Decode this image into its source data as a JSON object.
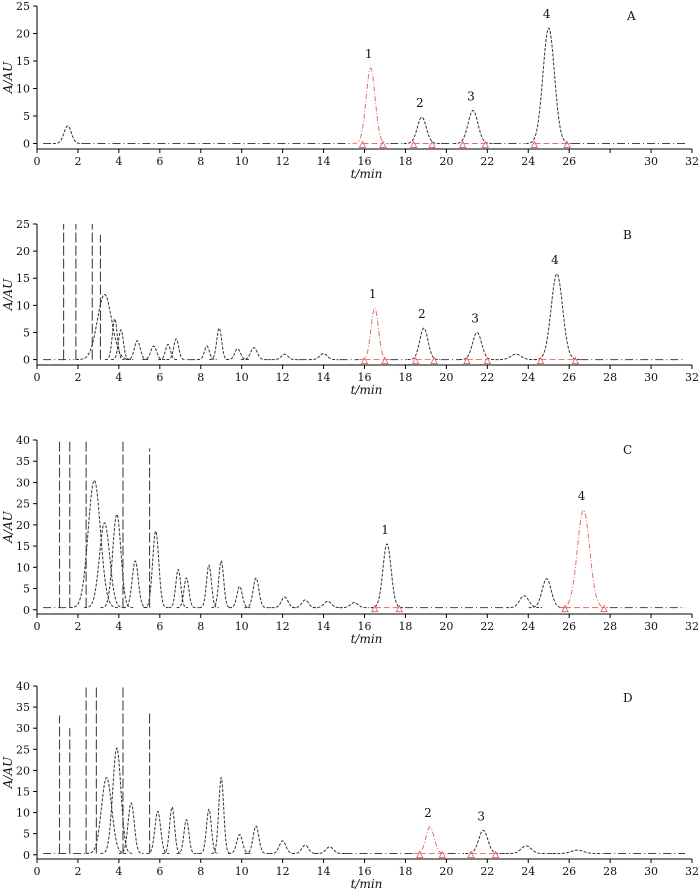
{
  "chart_data": [
    {
      "type": "line",
      "panel": "A",
      "xlabel": "t/min",
      "ylabel": "A/AU",
      "xlim": [
        0,
        32
      ],
      "ylim": [
        -1,
        25
      ],
      "xticks": [
        0,
        2,
        4,
        6,
        8,
        10,
        12,
        14,
        16,
        18,
        20,
        22,
        24,
        26,
        28,
        30,
        32
      ],
      "xtick_labels": [
        "0",
        "2",
        "4",
        "6",
        "8",
        "10",
        "12",
        "14",
        "16",
        "18",
        "20",
        "22",
        "24",
        "26",
        "",
        "30",
        "32"
      ],
      "yticks": [
        0,
        5,
        10,
        15,
        20,
        25
      ],
      "baseline": 0,
      "peaks": [
        {
          "rt": 1.5,
          "height": 3.2,
          "width": 0.18,
          "color": "#333333"
        },
        {
          "rt": 16.3,
          "height": 13.7,
          "width": 0.22,
          "color": "#e26b6b",
          "label": "1",
          "range": [
            15.9,
            16.9
          ]
        },
        {
          "rt": 18.8,
          "height": 4.8,
          "width": 0.22,
          "color": "#333333",
          "label": "2",
          "range": [
            18.4,
            19.3
          ]
        },
        {
          "rt": 21.3,
          "height": 6.0,
          "width": 0.24,
          "color": "#333333",
          "label": "3",
          "range": [
            20.8,
            21.9
          ]
        },
        {
          "rt": 25.0,
          "height": 21.0,
          "width": 0.28,
          "color": "#333333",
          "label": "4",
          "range": [
            24.3,
            25.9
          ]
        }
      ]
    },
    {
      "type": "line",
      "panel": "B",
      "xlabel": "t/min",
      "ylabel": "A/AU",
      "xlim": [
        0,
        32
      ],
      "ylim": [
        -1,
        25
      ],
      "xticks": [
        0,
        2,
        4,
        6,
        8,
        10,
        12,
        14,
        16,
        18,
        20,
        22,
        24,
        26,
        28,
        30,
        32
      ],
      "xtick_labels": [
        "0",
        "2",
        "4",
        "6",
        "8",
        "10",
        "12",
        "14",
        "16",
        "18",
        "20",
        "22",
        "24",
        "26",
        "28",
        "30",
        "32"
      ],
      "yticks": [
        0,
        5,
        10,
        15,
        20,
        25
      ],
      "baseline": 0,
      "solvent_spikes": [
        {
          "rt": 1.3,
          "height": 25
        },
        {
          "rt": 1.9,
          "height": 25
        },
        {
          "rt": 2.7,
          "height": 25
        },
        {
          "rt": 3.1,
          "height": 23
        }
      ],
      "peaks": [
        {
          "rt": 3.3,
          "height": 12.0,
          "width": 0.35,
          "color": "#333333"
        },
        {
          "rt": 3.8,
          "height": 7.5,
          "width": 0.12,
          "color": "#333333"
        },
        {
          "rt": 4.1,
          "height": 5.5,
          "width": 0.12,
          "color": "#333333"
        },
        {
          "rt": 4.9,
          "height": 3.5,
          "width": 0.14,
          "color": "#333333"
        },
        {
          "rt": 5.7,
          "height": 2.5,
          "width": 0.14,
          "color": "#333333"
        },
        {
          "rt": 6.4,
          "height": 2.8,
          "width": 0.12,
          "color": "#333333"
        },
        {
          "rt": 6.8,
          "height": 3.8,
          "width": 0.12,
          "color": "#333333"
        },
        {
          "rt": 8.3,
          "height": 2.5,
          "width": 0.12,
          "color": "#333333"
        },
        {
          "rt": 8.9,
          "height": 5.8,
          "width": 0.12,
          "color": "#333333"
        },
        {
          "rt": 9.8,
          "height": 2.0,
          "width": 0.14,
          "color": "#333333"
        },
        {
          "rt": 10.6,
          "height": 2.2,
          "width": 0.16,
          "color": "#333333"
        },
        {
          "rt": 12.1,
          "height": 1.0,
          "width": 0.16,
          "color": "#333333"
        },
        {
          "rt": 14.0,
          "height": 1.1,
          "width": 0.18,
          "color": "#333333"
        },
        {
          "rt": 16.5,
          "height": 9.5,
          "width": 0.18,
          "color": "#e26b6b",
          "label": "1",
          "range": [
            16.0,
            17.0
          ]
        },
        {
          "rt": 18.9,
          "height": 5.8,
          "width": 0.2,
          "color": "#333333",
          "label": "2",
          "range": [
            18.5,
            19.4
          ]
        },
        {
          "rt": 21.5,
          "height": 5.0,
          "width": 0.22,
          "color": "#333333",
          "label": "3",
          "range": [
            21.0,
            22.0
          ]
        },
        {
          "rt": 23.4,
          "height": 1.0,
          "width": 0.25,
          "color": "#333333"
        },
        {
          "rt": 25.4,
          "height": 15.8,
          "width": 0.28,
          "color": "#333333",
          "label": "4",
          "range": [
            24.6,
            26.3
          ]
        }
      ]
    },
    {
      "type": "line",
      "panel": "C",
      "xlabel": "t/min",
      "ylabel": "A/AU",
      "xlim": [
        0,
        32
      ],
      "ylim": [
        -1,
        40
      ],
      "xticks": [
        0,
        2,
        4,
        6,
        8,
        10,
        12,
        14,
        16,
        18,
        20,
        22,
        24,
        26,
        28,
        30,
        32
      ],
      "xtick_labels": [
        "0",
        "2",
        "4",
        "6",
        "8",
        "10",
        "12",
        "14",
        "16",
        "18",
        "20",
        "22",
        "24",
        "26",
        "28",
        "30",
        "32"
      ],
      "yticks": [
        0,
        5,
        10,
        15,
        20,
        25,
        30,
        35,
        40
      ],
      "baseline": 0.5,
      "solvent_spikes": [
        {
          "rt": 1.1,
          "height": 40
        },
        {
          "rt": 1.6,
          "height": 40
        },
        {
          "rt": 2.4,
          "height": 40
        },
        {
          "rt": 4.2,
          "height": 40
        },
        {
          "rt": 5.5,
          "height": 38
        }
      ],
      "peaks": [
        {
          "rt": 2.8,
          "height": 30.0,
          "width": 0.3,
          "color": "#333333"
        },
        {
          "rt": 3.3,
          "height": 20.0,
          "width": 0.25,
          "color": "#333333"
        },
        {
          "rt": 3.9,
          "height": 22.0,
          "width": 0.2,
          "color": "#333333"
        },
        {
          "rt": 4.8,
          "height": 11.0,
          "width": 0.15,
          "color": "#333333"
        },
        {
          "rt": 5.8,
          "height": 18.0,
          "width": 0.15,
          "color": "#333333"
        },
        {
          "rt": 6.9,
          "height": 9.0,
          "width": 0.12,
          "color": "#333333"
        },
        {
          "rt": 7.3,
          "height": 7.0,
          "width": 0.12,
          "color": "#333333"
        },
        {
          "rt": 8.4,
          "height": 10.0,
          "width": 0.12,
          "color": "#333333"
        },
        {
          "rt": 9.0,
          "height": 11.0,
          "width": 0.12,
          "color": "#333333"
        },
        {
          "rt": 9.9,
          "height": 5.0,
          "width": 0.13,
          "color": "#333333"
        },
        {
          "rt": 10.7,
          "height": 7.0,
          "width": 0.14,
          "color": "#333333"
        },
        {
          "rt": 12.1,
          "height": 2.5,
          "width": 0.16,
          "color": "#333333"
        },
        {
          "rt": 13.1,
          "height": 1.8,
          "width": 0.16,
          "color": "#333333"
        },
        {
          "rt": 14.2,
          "height": 1.5,
          "width": 0.18,
          "color": "#333333"
        },
        {
          "rt": 15.5,
          "height": 1.2,
          "width": 0.18,
          "color": "#333333"
        },
        {
          "rt": 17.1,
          "height": 15.0,
          "width": 0.2,
          "color": "#333333",
          "label": "1",
          "range": [
            16.5,
            17.7
          ]
        },
        {
          "rt": 23.8,
          "height": 2.8,
          "width": 0.22,
          "color": "#333333"
        },
        {
          "rt": 24.9,
          "height": 6.8,
          "width": 0.22,
          "color": "#333333"
        },
        {
          "rt": 26.7,
          "height": 23.0,
          "width": 0.3,
          "color": "#e26b6b",
          "label": "4",
          "range": [
            25.8,
            27.7
          ]
        }
      ]
    },
    {
      "type": "line",
      "panel": "D",
      "xlabel": "t/min",
      "ylabel": "A/AU",
      "xlim": [
        0,
        32
      ],
      "ylim": [
        -1,
        40
      ],
      "xticks": [
        0,
        2,
        4,
        6,
        8,
        10,
        12,
        14,
        16,
        18,
        20,
        22,
        24,
        26,
        28,
        30,
        32
      ],
      "xtick_labels": [
        "0",
        "2",
        "4",
        "6",
        "8",
        "10",
        "12",
        "14",
        "16",
        "18",
        "20",
        "22",
        "24",
        "26",
        "28",
        "30",
        "32"
      ],
      "yticks": [
        0,
        5,
        10,
        15,
        20,
        25,
        30,
        35,
        40
      ],
      "baseline": 0.3,
      "solvent_spikes": [
        {
          "rt": 1.1,
          "height": 33
        },
        {
          "rt": 1.6,
          "height": 30
        },
        {
          "rt": 2.4,
          "height": 40
        },
        {
          "rt": 2.9,
          "height": 40
        },
        {
          "rt": 4.2,
          "height": 40
        },
        {
          "rt": 5.5,
          "height": 34
        }
      ],
      "peaks": [
        {
          "rt": 3.4,
          "height": 18.0,
          "width": 0.25,
          "color": "#333333"
        },
        {
          "rt": 3.9,
          "height": 25.0,
          "width": 0.2,
          "color": "#333333"
        },
        {
          "rt": 4.6,
          "height": 12.0,
          "width": 0.15,
          "color": "#333333"
        },
        {
          "rt": 5.9,
          "height": 10.0,
          "width": 0.14,
          "color": "#333333"
        },
        {
          "rt": 6.6,
          "height": 11.0,
          "width": 0.12,
          "color": "#333333"
        },
        {
          "rt": 7.3,
          "height": 8.0,
          "width": 0.12,
          "color": "#333333"
        },
        {
          "rt": 8.4,
          "height": 10.5,
          "width": 0.12,
          "color": "#333333"
        },
        {
          "rt": 9.0,
          "height": 18.0,
          "width": 0.12,
          "color": "#333333"
        },
        {
          "rt": 9.9,
          "height": 4.5,
          "width": 0.14,
          "color": "#333333"
        },
        {
          "rt": 10.7,
          "height": 6.5,
          "width": 0.14,
          "color": "#333333"
        },
        {
          "rt": 12.0,
          "height": 3.0,
          "width": 0.16,
          "color": "#333333"
        },
        {
          "rt": 13.1,
          "height": 2.0,
          "width": 0.16,
          "color": "#333333"
        },
        {
          "rt": 14.3,
          "height": 1.6,
          "width": 0.18,
          "color": "#333333"
        },
        {
          "rt": 19.2,
          "height": 6.3,
          "width": 0.2,
          "color": "#e26b6b",
          "label": "2",
          "range": [
            18.7,
            19.8
          ]
        },
        {
          "rt": 21.8,
          "height": 5.5,
          "width": 0.22,
          "color": "#333333",
          "label": "3",
          "range": [
            21.2,
            22.4
          ]
        },
        {
          "rt": 23.9,
          "height": 1.8,
          "width": 0.25,
          "color": "#333333"
        },
        {
          "rt": 26.4,
          "height": 0.8,
          "width": 0.3,
          "color": "#333333"
        }
      ]
    }
  ]
}
